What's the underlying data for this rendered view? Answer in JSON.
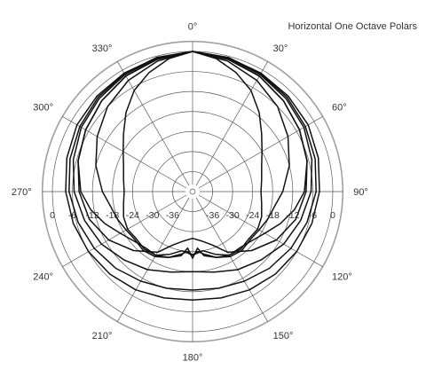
{
  "chart_data": {
    "type": "polar-line",
    "title": "Horizontal One Octave Polars",
    "angle_labels": [
      {
        "angle": 0,
        "text": "0°"
      },
      {
        "angle": 30,
        "text": "30°"
      },
      {
        "angle": 60,
        "text": "60°"
      },
      {
        "angle": 90,
        "text": "90°"
      },
      {
        "angle": 120,
        "text": "120°"
      },
      {
        "angle": 150,
        "text": "150°"
      },
      {
        "angle": 180,
        "text": "180°"
      },
      {
        "angle": 210,
        "text": "210°"
      },
      {
        "angle": 240,
        "text": "240°"
      },
      {
        "angle": 270,
        "text": "270°"
      },
      {
        "angle": 300,
        "text": "300°"
      },
      {
        "angle": 330,
        "text": "330°"
      }
    ],
    "db_ticks": [
      0,
      -6,
      -12,
      -18,
      -24,
      -30,
      -36
    ],
    "db_tick_labels": [
      {
        "value": 0,
        "left": "0",
        "right": "0"
      },
      {
        "value": -6,
        "left": "-6",
        "right": "-6"
      },
      {
        "value": -12,
        "left": "-12",
        "right": "-12"
      },
      {
        "value": -18,
        "left": "-18",
        "right": "-18"
      },
      {
        "value": -24,
        "left": "-24",
        "right": "-24"
      },
      {
        "value": -30,
        "left": "-30",
        "right": "-30"
      },
      {
        "value": -36,
        "left": "-36",
        "right": "-36"
      }
    ],
    "r_range": [
      -42,
      0
    ],
    "outer_ring_db": 3,
    "grid": true,
    "angle_step": 30,
    "series": [
      {
        "points": [
          [
            0,
            0
          ],
          [
            15,
            -0.5
          ],
          [
            30,
            -1
          ],
          [
            45,
            -1.5
          ],
          [
            60,
            -2
          ],
          [
            75,
            -3
          ],
          [
            90,
            -4
          ],
          [
            105,
            -5
          ],
          [
            120,
            -6
          ],
          [
            135,
            -7
          ],
          [
            150,
            -8
          ],
          [
            165,
            -9
          ],
          [
            180,
            -9.5
          ],
          [
            195,
            -9
          ],
          [
            210,
            -8
          ],
          [
            225,
            -7
          ],
          [
            240,
            -6
          ],
          [
            255,
            -5
          ],
          [
            270,
            -4
          ],
          [
            285,
            -3
          ],
          [
            300,
            -2
          ],
          [
            315,
            -1.5
          ],
          [
            330,
            -1
          ],
          [
            345,
            -0.5
          ]
        ]
      },
      {
        "points": [
          [
            0,
            0
          ],
          [
            15,
            -0.4
          ],
          [
            30,
            -1.2
          ],
          [
            45,
            -2
          ],
          [
            60,
            -3
          ],
          [
            75,
            -4
          ],
          [
            90,
            -5
          ],
          [
            105,
            -6.5
          ],
          [
            120,
            -8
          ],
          [
            135,
            -9.5
          ],
          [
            150,
            -11
          ],
          [
            165,
            -12
          ],
          [
            180,
            -12.5
          ],
          [
            195,
            -12
          ],
          [
            210,
            -11
          ],
          [
            225,
            -9.5
          ],
          [
            240,
            -8
          ],
          [
            255,
            -6.5
          ],
          [
            270,
            -5
          ],
          [
            285,
            -4
          ],
          [
            300,
            -3
          ],
          [
            315,
            -2
          ],
          [
            330,
            -1.2
          ],
          [
            345,
            -0.4
          ]
        ]
      },
      {
        "points": [
          [
            0,
            0
          ],
          [
            15,
            -0.5
          ],
          [
            30,
            -1.5
          ],
          [
            45,
            -2.5
          ],
          [
            60,
            -3.5
          ],
          [
            75,
            -5
          ],
          [
            90,
            -6.5
          ],
          [
            105,
            -8.5
          ],
          [
            120,
            -10.5
          ],
          [
            135,
            -13
          ],
          [
            150,
            -15
          ],
          [
            165,
            -17
          ],
          [
            180,
            -18
          ],
          [
            195,
            -17
          ],
          [
            210,
            -15
          ],
          [
            225,
            -13
          ],
          [
            240,
            -10.5
          ],
          [
            255,
            -8.5
          ],
          [
            270,
            -6.5
          ],
          [
            285,
            -5
          ],
          [
            300,
            -3.5
          ],
          [
            315,
            -2.5
          ],
          [
            330,
            -1.5
          ],
          [
            345,
            -0.5
          ]
        ]
      },
      {
        "points": [
          [
            0,
            0
          ],
          [
            15,
            -0.8
          ],
          [
            30,
            -2
          ],
          [
            45,
            -3.5
          ],
          [
            60,
            -5
          ],
          [
            75,
            -6.5
          ],
          [
            90,
            -8
          ],
          [
            105,
            -10
          ],
          [
            120,
            -13
          ],
          [
            135,
            -17
          ],
          [
            150,
            -21
          ],
          [
            160,
            -25
          ],
          [
            170,
            -27
          ],
          [
            180,
            -28
          ],
          [
            190,
            -27
          ],
          [
            200,
            -25
          ],
          [
            210,
            -21
          ],
          [
            225,
            -17
          ],
          [
            240,
            -13
          ],
          [
            255,
            -10
          ],
          [
            270,
            -8
          ],
          [
            285,
            -6.5
          ],
          [
            300,
            -5
          ],
          [
            315,
            -3.5
          ],
          [
            330,
            -2
          ],
          [
            345,
            -0.8
          ]
        ]
      },
      {
        "points": [
          [
            0,
            0
          ],
          [
            15,
            -1
          ],
          [
            30,
            -2
          ],
          [
            45,
            -3.5
          ],
          [
            60,
            -5
          ],
          [
            75,
            -6.5
          ],
          [
            90,
            -8.5
          ],
          [
            100,
            -11
          ],
          [
            110,
            -14
          ],
          [
            120,
            -17
          ],
          [
            130,
            -19
          ],
          [
            140,
            -20
          ],
          [
            150,
            -20
          ],
          [
            160,
            -21
          ],
          [
            170,
            -22.5
          ],
          [
            175,
            -25
          ],
          [
            180,
            -22
          ],
          [
            185,
            -25
          ],
          [
            190,
            -22.5
          ],
          [
            200,
            -21
          ],
          [
            210,
            -20
          ],
          [
            220,
            -20
          ],
          [
            230,
            -19
          ],
          [
            240,
            -17
          ],
          [
            250,
            -14
          ],
          [
            260,
            -11
          ],
          [
            270,
            -8.5
          ],
          [
            285,
            -6.5
          ],
          [
            300,
            -5
          ],
          [
            315,
            -3.5
          ],
          [
            330,
            -2
          ],
          [
            345,
            -1
          ]
        ]
      },
      {
        "points": [
          [
            0,
            0
          ],
          [
            15,
            -1.5
          ],
          [
            30,
            -3.5
          ],
          [
            45,
            -6
          ],
          [
            60,
            -9
          ],
          [
            75,
            -12
          ],
          [
            90,
            -15
          ],
          [
            100,
            -17
          ],
          [
            110,
            -18
          ],
          [
            120,
            -19
          ],
          [
            130,
            -19.5
          ],
          [
            140,
            -19
          ],
          [
            150,
            -19.5
          ],
          [
            160,
            -21
          ],
          [
            170,
            -23
          ],
          [
            175,
            -24
          ],
          [
            180,
            -23
          ],
          [
            185,
            -24
          ],
          [
            190,
            -23
          ],
          [
            200,
            -21
          ],
          [
            210,
            -19.5
          ],
          [
            220,
            -19
          ],
          [
            230,
            -19.5
          ],
          [
            240,
            -19
          ],
          [
            250,
            -18
          ],
          [
            260,
            -17
          ],
          [
            270,
            -15
          ],
          [
            285,
            -12
          ],
          [
            300,
            -9
          ],
          [
            315,
            -6
          ],
          [
            330,
            -3.5
          ],
          [
            345,
            -1.5
          ]
        ]
      },
      {
        "points": [
          [
            0,
            0
          ],
          [
            10,
            -1.5
          ],
          [
            20,
            -4
          ],
          [
            30,
            -7
          ],
          [
            40,
            -11
          ],
          [
            50,
            -15
          ],
          [
            60,
            -18
          ],
          [
            70,
            -20
          ],
          [
            80,
            -21
          ],
          [
            90,
            -21.5
          ],
          [
            100,
            -21
          ],
          [
            110,
            -20
          ],
          [
            120,
            -19.5
          ],
          [
            130,
            -20
          ],
          [
            140,
            -19.5
          ],
          [
            150,
            -20
          ],
          [
            160,
            -22
          ],
          [
            170,
            -24
          ],
          [
            180,
            -23
          ],
          [
            190,
            -24
          ],
          [
            200,
            -22
          ],
          [
            210,
            -20
          ],
          [
            220,
            -19.5
          ],
          [
            230,
            -20
          ],
          [
            240,
            -19.5
          ],
          [
            250,
            -20
          ],
          [
            260,
            -21
          ],
          [
            270,
            -21.5
          ],
          [
            280,
            -21
          ],
          [
            290,
            -20
          ],
          [
            300,
            -18
          ],
          [
            310,
            -15
          ],
          [
            320,
            -11
          ],
          [
            330,
            -7
          ],
          [
            340,
            -4
          ],
          [
            350,
            -1.5
          ]
        ]
      }
    ]
  }
}
